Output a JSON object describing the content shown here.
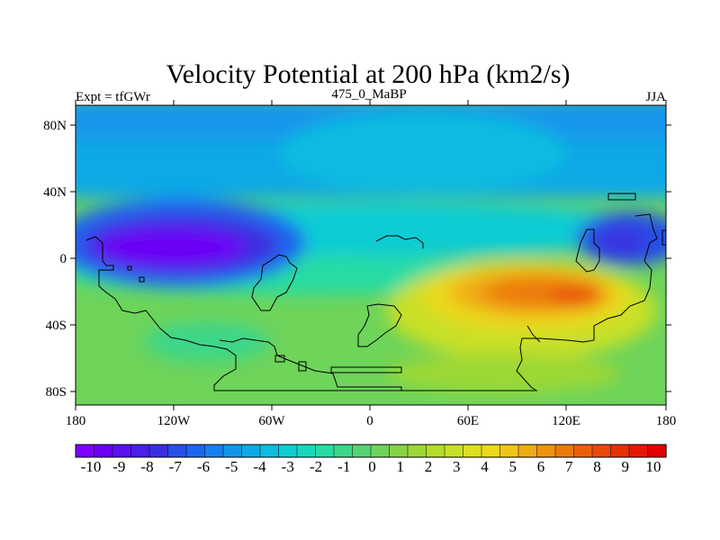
{
  "map": {
    "title": "Velocity Potential at 200 hPa (km2/s)",
    "left_label": "Expt = tfGWr",
    "center_label": "475_0_MaBP",
    "right_label": "JJA",
    "lon_ticks": [
      "180",
      "120W",
      "60W",
      "0",
      "60E",
      "120E",
      "180"
    ],
    "lat_ticks": [
      "80N",
      "40N",
      "0",
      "40S",
      "80S"
    ]
  },
  "colorbar": {
    "labels": [
      "-10",
      "-9",
      "-8",
      "-7",
      "-6",
      "-5",
      "-4",
      "-3",
      "-2",
      "-1",
      "0",
      "1",
      "2",
      "3",
      "4",
      "5",
      "6",
      "7",
      "8",
      "9",
      "10"
    ],
    "colors": [
      "#7f00ff",
      "#6a00f5",
      "#5a10ef",
      "#4a1fe6",
      "#3a2fe0",
      "#2850e6",
      "#1a66ee",
      "#1580ee",
      "#1296ea",
      "#10a8e6",
      "#10bce0",
      "#10ccd4",
      "#18d8bc",
      "#28dca4",
      "#3ed68a",
      "#56d472",
      "#6ed45a",
      "#86d442",
      "#9cd836",
      "#b4dc2c",
      "#c8e028",
      "#dce020",
      "#ecd81c",
      "#f0c418",
      "#f0ac14",
      "#ee9410",
      "#ec7a0c",
      "#ea600a",
      "#e84808",
      "#e63006",
      "#e41804",
      "#e20000"
    ]
  }
}
